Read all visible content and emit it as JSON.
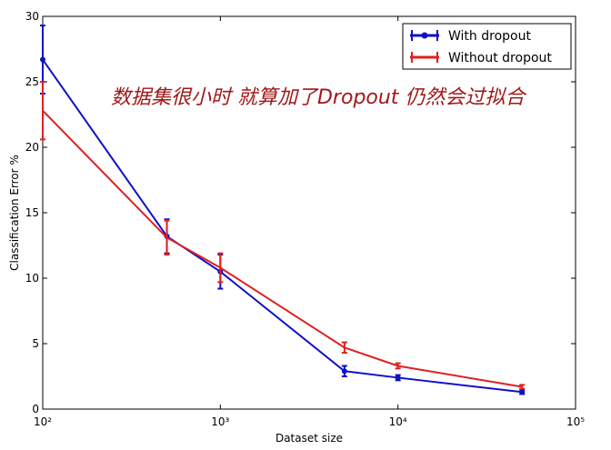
{
  "chart_data": {
    "type": "line",
    "annotation": "数据集很小时 就算加了Dropout 仍然会过拟合",
    "xlabel": "Dataset size",
    "ylabel": "Classification Error %",
    "x": [
      100,
      500,
      1000,
      5000,
      10000,
      50000
    ],
    "xscale": "log",
    "xlim": [
      100,
      100000
    ],
    "xticks": [
      {
        "value": 100,
        "label": "10²"
      },
      {
        "value": 1000,
        "label": "10³"
      },
      {
        "value": 10000,
        "label": "10⁴"
      },
      {
        "value": 100000,
        "label": "10⁵"
      }
    ],
    "ylim": [
      0,
      30
    ],
    "yticks": [
      0,
      5,
      10,
      15,
      20,
      25,
      30
    ],
    "legend": "upper right",
    "series": [
      {
        "name": "With dropout",
        "color": "#1010c8",
        "marker": true,
        "values": [
          26.7,
          13.2,
          10.5,
          2.9,
          2.4,
          1.3
        ],
        "errors": [
          2.6,
          1.3,
          1.3,
          0.4,
          0.2,
          0.15
        ]
      },
      {
        "name": "Without dropout",
        "color": "#e02020",
        "marker": false,
        "values": [
          22.8,
          13.1,
          10.8,
          4.7,
          3.3,
          1.7
        ],
        "errors": [
          2.2,
          1.3,
          1.1,
          0.4,
          0.2,
          0.15
        ]
      }
    ]
  }
}
